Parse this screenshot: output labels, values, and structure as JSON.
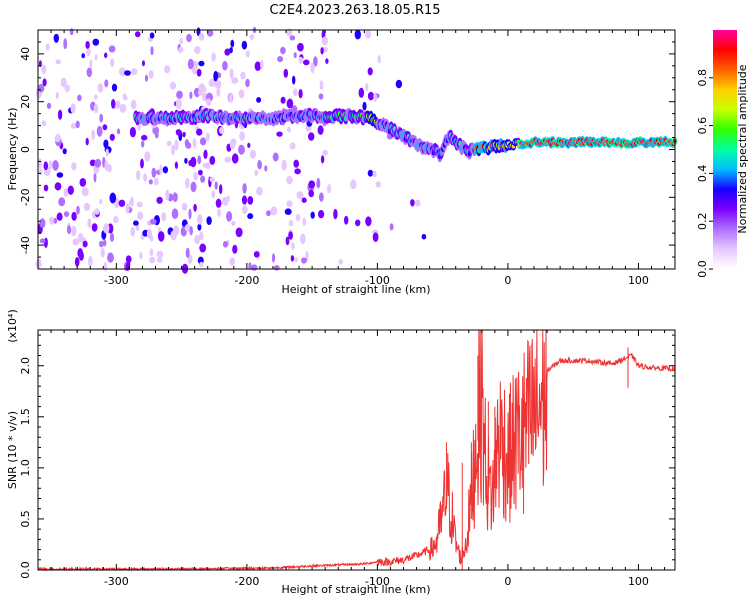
{
  "title": "C2E4.2023.263.18.05.R15",
  "chart_data": [
    {
      "type": "heatmap",
      "xlabel": "Height of straight line (km)",
      "ylabel": "Frequency (Hz)",
      "xlim": [
        -360,
        128
      ],
      "ylim": [
        -50,
        50
      ],
      "xticks": [
        -300,
        -200,
        -100,
        0,
        100
      ],
      "yticks": [
        -40,
        -20,
        0,
        20,
        40
      ],
      "colorbar": {
        "label": "Normalized spectral amplitude",
        "range": [
          0.0,
          1.0
        ],
        "ticks": [
          0.0,
          0.2,
          0.4,
          0.6,
          0.8
        ],
        "colormap": [
          "#ffffff",
          "#e6c8ff",
          "#b070ff",
          "#7a00ff",
          "#1a00ff",
          "#00bfff",
          "#00ffa0",
          "#30ff00",
          "#c8ff00",
          "#ffd000",
          "#ff6000",
          "#ff0000",
          "#ff00a0"
        ]
      },
      "ridge": {
        "x": [
          -285,
          -260,
          -230,
          -205,
          -180,
          -160,
          -140,
          -120,
          -105,
          -95,
          -85,
          -75,
          -65,
          -58,
          -52,
          -45,
          -38,
          -30,
          -20,
          -10,
          0,
          20,
          50,
          80,
          110,
          128
        ],
        "y": [
          13,
          13,
          14,
          13,
          13,
          14,
          14,
          14,
          13,
          10,
          7,
          4,
          1,
          0,
          -2,
          6,
          2,
          -1,
          1,
          1,
          2,
          3,
          3,
          3,
          3,
          3
        ]
      }
    },
    {
      "type": "line",
      "xlabel": "Height of straight line (km)",
      "ylabel": "SNR (10 * v/v)",
      "yscale_label": "(x10⁴)",
      "xlim": [
        -360,
        128
      ],
      "ylim": [
        0,
        2.35
      ],
      "xticks": [
        -300,
        -200,
        -100,
        0,
        100
      ],
      "yticks": [
        0.0,
        0.5,
        1.0,
        1.5,
        2.0
      ],
      "line_color": "#ee3333",
      "envelope": {
        "x": [
          -360,
          -250,
          -180,
          -150,
          -110,
          -100,
          -90,
          -80,
          -70,
          -60,
          -55,
          -50,
          -47,
          -44,
          -40,
          -36,
          -32,
          -28,
          -25,
          -22,
          -20,
          -18,
          -15,
          -12,
          -8,
          -4,
          0,
          5,
          10,
          15,
          20,
          25,
          30,
          40,
          60,
          80,
          95,
          100,
          110,
          128
        ],
        "y": [
          0.01,
          0.01,
          0.02,
          0.04,
          0.06,
          0.08,
          0.08,
          0.1,
          0.14,
          0.2,
          0.3,
          0.6,
          0.9,
          0.7,
          0.3,
          0.12,
          0.3,
          0.8,
          1.3,
          1.7,
          2.0,
          1.3,
          0.95,
          0.8,
          1.4,
          1.45,
          1.2,
          1.4,
          1.5,
          1.6,
          1.7,
          1.85,
          1.95,
          2.05,
          2.05,
          2.02,
          2.1,
          2.0,
          1.98,
          1.97
        ]
      },
      "spikes": [
        {
          "x": -47,
          "y": 1.25
        },
        {
          "x": -35,
          "y": 1.05
        },
        {
          "x": -28,
          "y": 1.25
        },
        {
          "x": -23,
          "y": 2.1
        },
        {
          "x": -20,
          "y": 2.35
        },
        {
          "x": -15,
          "y": 1.65
        },
        {
          "x": -10,
          "y": 1.6
        },
        {
          "x": 0,
          "y": 1.45
        },
        {
          "x": 5,
          "y": 1.35
        },
        {
          "x": 12,
          "y": 0.55
        },
        {
          "x": 92,
          "y": 2.18
        }
      ]
    }
  ]
}
